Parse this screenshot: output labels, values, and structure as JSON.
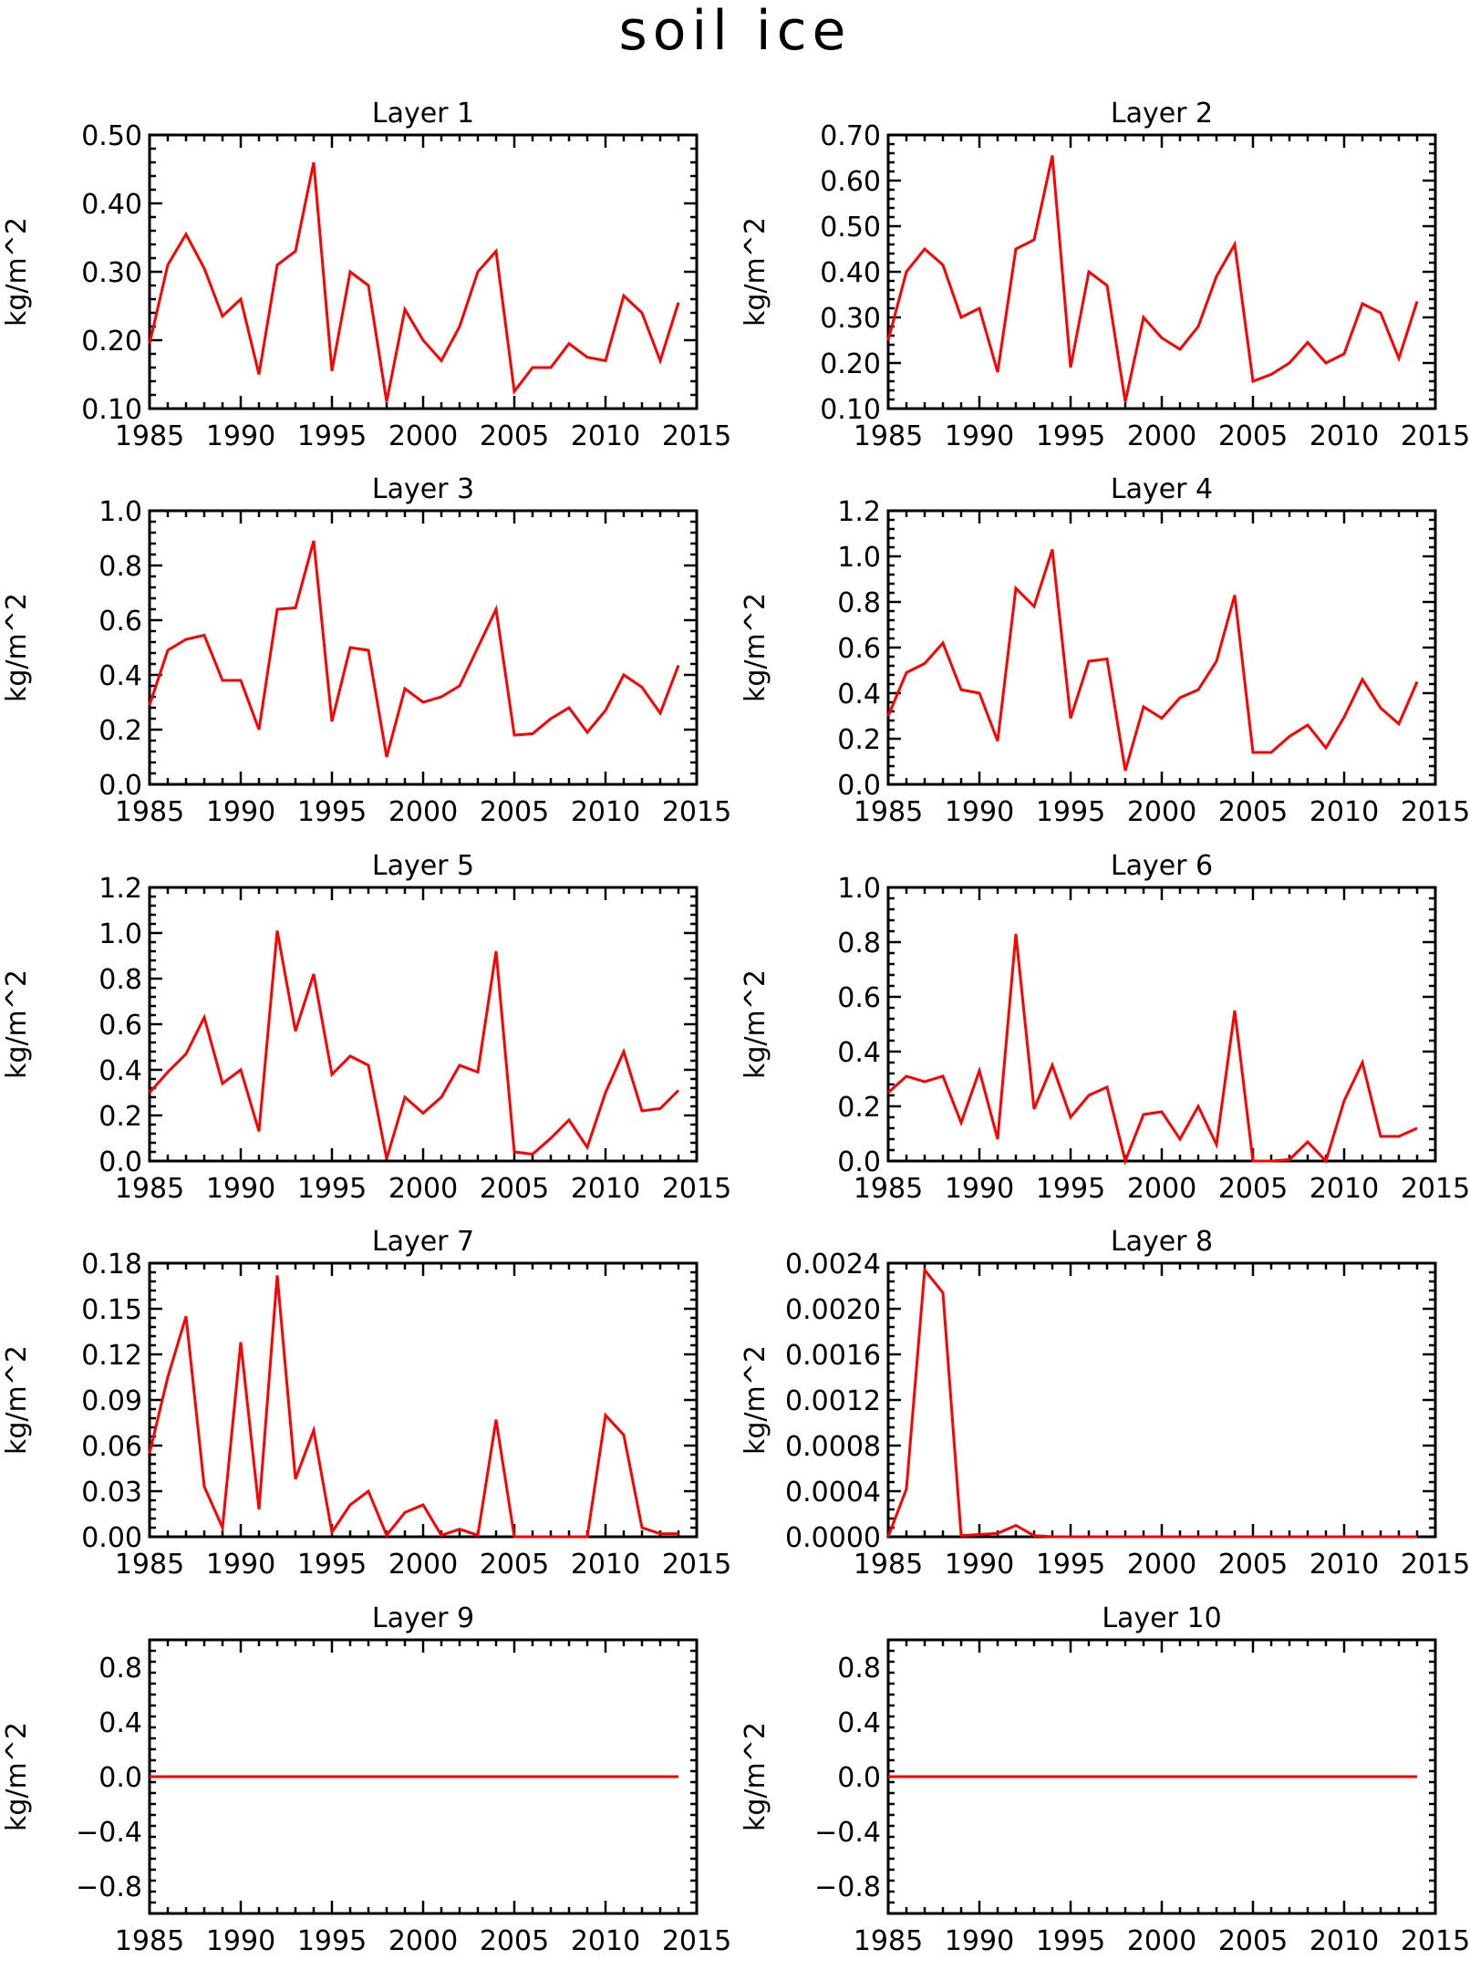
{
  "title": "soil ice",
  "colors": {
    "line": "#ff0000",
    "axes": "#000000",
    "background": "#ffffff"
  },
  "chart_data": [
    {
      "type": "line",
      "title": "Layer 1",
      "ylabel": "kg/m^2",
      "xlim": [
        1985,
        2015
      ],
      "ylim": [
        0.1,
        0.5
      ],
      "xticks": [
        1985,
        1990,
        1995,
        2000,
        2005,
        2010,
        2015
      ],
      "xtick_labels": [
        "1985",
        "1990",
        "1995",
        "2000",
        "2005",
        "2010",
        "2015"
      ],
      "yticks": [
        0.1,
        0.2,
        0.3,
        0.4,
        0.5
      ],
      "ytick_labels": [
        "0.10",
        "0.20",
        "0.30",
        "0.40",
        "0.50"
      ],
      "x": [
        1985,
        1986,
        1987,
        1988,
        1989,
        1990,
        1991,
        1992,
        1993,
        1994,
        1995,
        1996,
        1997,
        1998,
        1999,
        2000,
        2001,
        2002,
        2003,
        2004,
        2005,
        2006,
        2007,
        2008,
        2009,
        2010,
        2011,
        2012,
        2013,
        2014
      ],
      "values": [
        0.195,
        0.31,
        0.355,
        0.305,
        0.235,
        0.26,
        0.15,
        0.31,
        0.33,
        0.46,
        0.155,
        0.3,
        0.28,
        0.11,
        0.245,
        0.2,
        0.17,
        0.22,
        0.3,
        0.33,
        0.125,
        0.16,
        0.16,
        0.195,
        0.175,
        0.17,
        0.265,
        0.24,
        0.17,
        0.255
      ]
    },
    {
      "type": "line",
      "title": "Layer 2",
      "ylabel": "kg/m^2",
      "xlim": [
        1985,
        2015
      ],
      "ylim": [
        0.1,
        0.7
      ],
      "xticks": [
        1985,
        1990,
        1995,
        2000,
        2005,
        2010,
        2015
      ],
      "xtick_labels": [
        "1985",
        "1990",
        "1995",
        "2000",
        "2005",
        "2010",
        "2015"
      ],
      "yticks": [
        0.1,
        0.2,
        0.3,
        0.4,
        0.5,
        0.6,
        0.7
      ],
      "ytick_labels": [
        "0.10",
        "0.20",
        "0.30",
        "0.40",
        "0.50",
        "0.60",
        "0.70"
      ],
      "x": [
        1985,
        1986,
        1987,
        1988,
        1989,
        1990,
        1991,
        1992,
        1993,
        1994,
        1995,
        1996,
        1997,
        1998,
        1999,
        2000,
        2001,
        2002,
        2003,
        2004,
        2005,
        2006,
        2007,
        2008,
        2009,
        2010,
        2011,
        2012,
        2013,
        2014
      ],
      "values": [
        0.25,
        0.4,
        0.45,
        0.415,
        0.3,
        0.32,
        0.18,
        0.45,
        0.47,
        0.655,
        0.19,
        0.4,
        0.37,
        0.115,
        0.3,
        0.255,
        0.23,
        0.28,
        0.39,
        0.46,
        0.16,
        0.175,
        0.2,
        0.245,
        0.2,
        0.22,
        0.33,
        0.31,
        0.21,
        0.335
      ]
    },
    {
      "type": "line",
      "title": "Layer 3",
      "ylabel": "kg/m^2",
      "xlim": [
        1985,
        2015
      ],
      "ylim": [
        0.0,
        1.0
      ],
      "xticks": [
        1985,
        1990,
        1995,
        2000,
        2005,
        2010,
        2015
      ],
      "xtick_labels": [
        "1985",
        "1990",
        "1995",
        "2000",
        "2005",
        "2010",
        "2015"
      ],
      "yticks": [
        0.0,
        0.2,
        0.4,
        0.6,
        0.8,
        1.0
      ],
      "ytick_labels": [
        "0.0",
        "0.2",
        "0.4",
        "0.6",
        "0.8",
        "1.0"
      ],
      "x": [
        1985,
        1986,
        1987,
        1988,
        1989,
        1990,
        1991,
        1992,
        1993,
        1994,
        1995,
        1996,
        1997,
        1998,
        1999,
        2000,
        2001,
        2002,
        2003,
        2004,
        2005,
        2006,
        2007,
        2008,
        2009,
        2010,
        2011,
        2012,
        2013,
        2014
      ],
      "values": [
        0.29,
        0.49,
        0.53,
        0.545,
        0.38,
        0.38,
        0.2,
        0.64,
        0.645,
        0.89,
        0.23,
        0.5,
        0.49,
        0.1,
        0.35,
        0.3,
        0.32,
        0.36,
        0.5,
        0.64,
        0.18,
        0.185,
        0.24,
        0.28,
        0.19,
        0.27,
        0.4,
        0.355,
        0.26,
        0.435
      ]
    },
    {
      "type": "line",
      "title": "Layer 4",
      "ylabel": "kg/m^2",
      "xlim": [
        1985,
        2015
      ],
      "ylim": [
        0.0,
        1.2
      ],
      "xticks": [
        1985,
        1990,
        1995,
        2000,
        2005,
        2010,
        2015
      ],
      "xtick_labels": [
        "1985",
        "1990",
        "1995",
        "2000",
        "2005",
        "2010",
        "2015"
      ],
      "yticks": [
        0.0,
        0.2,
        0.4,
        0.6,
        0.8,
        1.0,
        1.2
      ],
      "ytick_labels": [
        "0.0",
        "0.2",
        "0.4",
        "0.6",
        "0.8",
        "1.0",
        "1.2"
      ],
      "x": [
        1985,
        1986,
        1987,
        1988,
        1989,
        1990,
        1991,
        1992,
        1993,
        1994,
        1995,
        1996,
        1997,
        1998,
        1999,
        2000,
        2001,
        2002,
        2003,
        2004,
        2005,
        2006,
        2007,
        2008,
        2009,
        2010,
        2011,
        2012,
        2013,
        2014
      ],
      "values": [
        0.3,
        0.49,
        0.53,
        0.62,
        0.415,
        0.4,
        0.19,
        0.86,
        0.78,
        1.03,
        0.29,
        0.54,
        0.55,
        0.06,
        0.34,
        0.29,
        0.38,
        0.415,
        0.54,
        0.83,
        0.14,
        0.14,
        0.21,
        0.26,
        0.16,
        0.295,
        0.46,
        0.335,
        0.265,
        0.45
      ]
    },
    {
      "type": "line",
      "title": "Layer 5",
      "ylabel": "kg/m^2",
      "xlim": [
        1985,
        2015
      ],
      "ylim": [
        0.0,
        1.2
      ],
      "xticks": [
        1985,
        1990,
        1995,
        2000,
        2005,
        2010,
        2015
      ],
      "xtick_labels": [
        "1985",
        "1990",
        "1995",
        "2000",
        "2005",
        "2010",
        "2015"
      ],
      "yticks": [
        0.0,
        0.2,
        0.4,
        0.6,
        0.8,
        1.0,
        1.2
      ],
      "ytick_labels": [
        "0.0",
        "0.2",
        "0.4",
        "0.6",
        "0.8",
        "1.0",
        "1.2"
      ],
      "x": [
        1985,
        1986,
        1987,
        1988,
        1989,
        1990,
        1991,
        1992,
        1993,
        1994,
        1995,
        1996,
        1997,
        1998,
        1999,
        2000,
        2001,
        2002,
        2003,
        2004,
        2005,
        2006,
        2007,
        2008,
        2009,
        2010,
        2011,
        2012,
        2013,
        2014
      ],
      "values": [
        0.3,
        0.39,
        0.47,
        0.63,
        0.34,
        0.4,
        0.13,
        1.01,
        0.57,
        0.82,
        0.38,
        0.46,
        0.42,
        0.01,
        0.28,
        0.21,
        0.28,
        0.42,
        0.39,
        0.92,
        0.04,
        0.03,
        0.1,
        0.18,
        0.06,
        0.3,
        0.48,
        0.22,
        0.23,
        0.31
      ]
    },
    {
      "type": "line",
      "title": "Layer 6",
      "ylabel": "kg/m^2",
      "xlim": [
        1985,
        2015
      ],
      "ylim": [
        0.0,
        1.0
      ],
      "xticks": [
        1985,
        1990,
        1995,
        2000,
        2005,
        2010,
        2015
      ],
      "xtick_labels": [
        "1985",
        "1990",
        "1995",
        "2000",
        "2005",
        "2010",
        "2015"
      ],
      "yticks": [
        0.0,
        0.2,
        0.4,
        0.6,
        0.8,
        1.0
      ],
      "ytick_labels": [
        "0.0",
        "0.2",
        "0.4",
        "0.6",
        "0.8",
        "1.0"
      ],
      "x": [
        1985,
        1986,
        1987,
        1988,
        1989,
        1990,
        1991,
        1992,
        1993,
        1994,
        1995,
        1996,
        1997,
        1998,
        1999,
        2000,
        2001,
        2002,
        2003,
        2004,
        2005,
        2006,
        2007,
        2008,
        2009,
        2010,
        2011,
        2012,
        2013,
        2014
      ],
      "values": [
        0.25,
        0.31,
        0.29,
        0.31,
        0.14,
        0.33,
        0.08,
        0.83,
        0.19,
        0.35,
        0.16,
        0.24,
        0.27,
        0.0,
        0.17,
        0.18,
        0.08,
        0.2,
        0.06,
        0.55,
        0.0,
        0.0,
        0.005,
        0.07,
        0.0,
        0.22,
        0.36,
        0.09,
        0.09,
        0.12
      ]
    },
    {
      "type": "line",
      "title": "Layer 7",
      "ylabel": "kg/m^2",
      "xlim": [
        1985,
        2015
      ],
      "ylim": [
        0.0,
        0.18
      ],
      "xticks": [
        1985,
        1990,
        1995,
        2000,
        2005,
        2010,
        2015
      ],
      "xtick_labels": [
        "1985",
        "1990",
        "1995",
        "2000",
        "2005",
        "2010",
        "2015"
      ],
      "yticks": [
        0.0,
        0.03,
        0.06,
        0.09,
        0.12,
        0.15,
        0.18
      ],
      "ytick_labels": [
        "0.00",
        "0.03",
        "0.06",
        "0.09",
        "0.12",
        "0.15",
        "0.18"
      ],
      "x": [
        1985,
        1986,
        1987,
        1988,
        1989,
        1990,
        1991,
        1992,
        1993,
        1994,
        1995,
        1996,
        1997,
        1998,
        1999,
        2000,
        2001,
        2002,
        2003,
        2004,
        2005,
        2006,
        2007,
        2008,
        2009,
        2010,
        2011,
        2012,
        2013,
        2014
      ],
      "values": [
        0.055,
        0.105,
        0.145,
        0.033,
        0.006,
        0.128,
        0.018,
        0.172,
        0.038,
        0.07,
        0.003,
        0.021,
        0.03,
        0.001,
        0.016,
        0.021,
        0.001,
        0.005,
        0.001,
        0.077,
        0.0,
        0.0,
        0.0,
        0.0,
        0.0,
        0.08,
        0.067,
        0.006,
        0.002,
        0.002
      ]
    },
    {
      "type": "line",
      "title": "Layer 8",
      "ylabel": "kg/m^2",
      "xlim": [
        1985,
        2015
      ],
      "ylim": [
        0.0,
        0.0024
      ],
      "xticks": [
        1985,
        1990,
        1995,
        2000,
        2005,
        2010,
        2015
      ],
      "xtick_labels": [
        "1985",
        "1990",
        "1995",
        "2000",
        "2005",
        "2010",
        "2015"
      ],
      "yticks": [
        0.0,
        0.0004,
        0.0008,
        0.0012,
        0.0016,
        0.002,
        0.0024
      ],
      "ytick_labels": [
        "0.0000",
        "0.0004",
        "0.0008",
        "0.0012",
        "0.0016",
        "0.0020",
        "0.0024"
      ],
      "x": [
        1985,
        1986,
        1987,
        1988,
        1989,
        1990,
        1991,
        1992,
        1993,
        1994,
        1995,
        1996,
        1997,
        1998,
        1999,
        2000,
        2001,
        2002,
        2003,
        2004,
        2005,
        2006,
        2007,
        2008,
        2009,
        2010,
        2011,
        2012,
        2013,
        2014
      ],
      "values": [
        0.0,
        0.00042,
        0.00234,
        0.00214,
        1e-05,
        2e-05,
        3e-05,
        0.0001,
        1e-05,
        0.0,
        0.0,
        0.0,
        0.0,
        0.0,
        0.0,
        0.0,
        0.0,
        0.0,
        0.0,
        0.0,
        0.0,
        0.0,
        0.0,
        0.0,
        0.0,
        0.0,
        0.0,
        0.0,
        0.0,
        0.0
      ]
    },
    {
      "type": "line",
      "title": "Layer 9",
      "ylabel": "kg/m^2",
      "xlim": [
        1985,
        2015
      ],
      "ylim": [
        -1.0,
        1.0
      ],
      "xticks": [
        1985,
        1990,
        1995,
        2000,
        2005,
        2010,
        2015
      ],
      "xtick_labels": [
        "1985",
        "1990",
        "1995",
        "2000",
        "2005",
        "2010",
        "2015"
      ],
      "yticks": [
        -0.8,
        -0.4,
        0.0,
        0.4,
        0.8
      ],
      "ytick_labels": [
        "−0.8",
        "−0.4",
        "0.0",
        "0.4",
        "0.8"
      ],
      "x": [
        1985,
        1986,
        1987,
        1988,
        1989,
        1990,
        1991,
        1992,
        1993,
        1994,
        1995,
        1996,
        1997,
        1998,
        1999,
        2000,
        2001,
        2002,
        2003,
        2004,
        2005,
        2006,
        2007,
        2008,
        2009,
        2010,
        2011,
        2012,
        2013,
        2014
      ],
      "values": [
        0,
        0,
        0,
        0,
        0,
        0,
        0,
        0,
        0,
        0,
        0,
        0,
        0,
        0,
        0,
        0,
        0,
        0,
        0,
        0,
        0,
        0,
        0,
        0,
        0,
        0,
        0,
        0,
        0,
        0
      ]
    },
    {
      "type": "line",
      "title": "Layer 10",
      "ylabel": "kg/m^2",
      "xlim": [
        1985,
        2015
      ],
      "ylim": [
        -1.0,
        1.0
      ],
      "xticks": [
        1985,
        1990,
        1995,
        2000,
        2005,
        2010,
        2015
      ],
      "xtick_labels": [
        "1985",
        "1990",
        "1995",
        "2000",
        "2005",
        "2010",
        "2015"
      ],
      "yticks": [
        -0.8,
        -0.4,
        0.0,
        0.4,
        0.8
      ],
      "ytick_labels": [
        "−0.8",
        "−0.4",
        "0.0",
        "0.4",
        "0.8"
      ],
      "x": [
        1985,
        1986,
        1987,
        1988,
        1989,
        1990,
        1991,
        1992,
        1993,
        1994,
        1995,
        1996,
        1997,
        1998,
        1999,
        2000,
        2001,
        2002,
        2003,
        2004,
        2005,
        2006,
        2007,
        2008,
        2009,
        2010,
        2011,
        2012,
        2013,
        2014
      ],
      "values": [
        0,
        0,
        0,
        0,
        0,
        0,
        0,
        0,
        0,
        0,
        0,
        0,
        0,
        0,
        0,
        0,
        0,
        0,
        0,
        0,
        0,
        0,
        0,
        0,
        0,
        0,
        0,
        0,
        0,
        0
      ]
    }
  ]
}
